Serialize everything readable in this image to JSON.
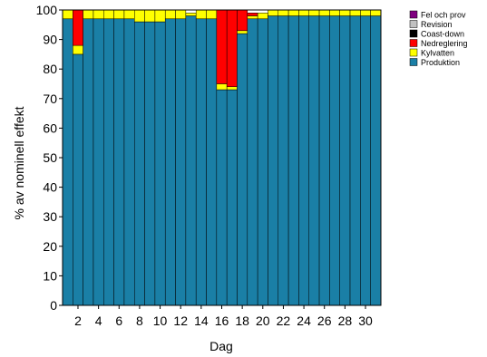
{
  "chart_data": {
    "type": "bar",
    "stacked": true,
    "xlabel": "Dag",
    "ylabel": "% av nominell effekt",
    "ylim": [
      0,
      100
    ],
    "yticks": [
      0,
      10,
      20,
      30,
      40,
      50,
      60,
      70,
      80,
      90,
      100
    ],
    "xtick_labels": [
      "2",
      "4",
      "6",
      "8",
      "10",
      "12",
      "14",
      "16",
      "18",
      "20",
      "22",
      "24",
      "26",
      "28",
      "30"
    ],
    "legend_position": "top-right",
    "categories": [
      1,
      2,
      3,
      4,
      5,
      6,
      7,
      8,
      9,
      10,
      11,
      12,
      13,
      14,
      15,
      16,
      17,
      18,
      19,
      20,
      21,
      22,
      23,
      24,
      25,
      26,
      27,
      28,
      29,
      30,
      31
    ],
    "series": [
      {
        "name": "Produktion",
        "color": "#1a7fa6",
        "values": [
          97,
          85,
          97,
          97,
          97,
          97,
          97,
          96,
          96,
          96,
          97,
          97,
          98,
          97,
          97,
          73,
          73,
          92,
          97,
          97,
          98,
          98,
          98,
          98,
          98,
          98,
          98,
          98,
          98,
          98,
          98
        ]
      },
      {
        "name": "Kylvatten",
        "color": "#ffff00",
        "values": [
          3,
          3,
          3,
          3,
          3,
          3,
          3,
          4,
          4,
          4,
          3,
          3,
          1,
          3,
          3,
          2,
          1,
          1,
          1,
          2,
          2,
          2,
          2,
          2,
          2,
          2,
          2,
          2,
          2,
          2,
          2
        ]
      },
      {
        "name": "Nedreglering",
        "color": "#ff0000",
        "values": [
          0,
          12,
          0,
          0,
          0,
          0,
          0,
          0,
          0,
          0,
          0,
          0,
          0,
          0,
          0,
          25,
          26,
          7,
          1,
          0,
          0,
          0,
          0,
          0,
          0,
          0,
          0,
          0,
          0,
          0,
          0
        ]
      },
      {
        "name": "Coast-down",
        "color": "#000000",
        "values": [
          0,
          0,
          0,
          0,
          0,
          0,
          0,
          0,
          0,
          0,
          0,
          0,
          0,
          0,
          0,
          0,
          0,
          0,
          0,
          0,
          0,
          0,
          0,
          0,
          0,
          0,
          0,
          0,
          0,
          0,
          0
        ]
      },
      {
        "name": "Revision",
        "color": "#c0c0c0",
        "values": [
          0,
          0,
          0,
          0,
          0,
          0,
          0,
          0,
          0,
          0,
          0,
          0,
          0,
          0,
          0,
          0,
          0,
          0,
          0,
          0,
          0,
          0,
          0,
          0,
          0,
          0,
          0,
          0,
          0,
          0,
          0
        ]
      },
      {
        "name": "Fel och prov",
        "color": "#800080",
        "values": [
          0,
          0,
          0,
          0,
          0,
          0,
          0,
          0,
          0,
          0,
          0,
          0,
          0,
          0,
          0,
          0,
          0,
          0,
          0,
          0,
          0,
          0,
          0,
          0,
          0,
          0,
          0,
          0,
          0,
          0,
          0
        ]
      }
    ],
    "legend_order": [
      "Fel och prov",
      "Revision",
      "Coast-down",
      "Nedreglering",
      "Kylvatten",
      "Produktion"
    ]
  }
}
